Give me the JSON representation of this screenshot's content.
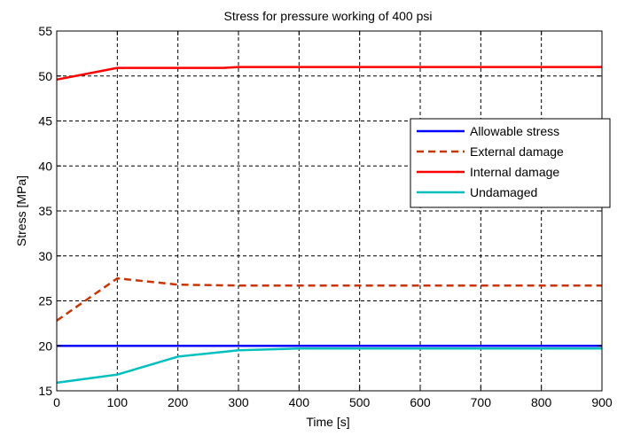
{
  "chart_data": {
    "type": "line",
    "title": "Stress for pressure working of 400 psi",
    "xlabel": "Time [s]",
    "ylabel": "Stress [MPa]",
    "xlim": [
      0,
      900
    ],
    "ylim": [
      15,
      55
    ],
    "xticks": [
      0,
      100,
      200,
      300,
      400,
      500,
      600,
      700,
      800,
      900
    ],
    "yticks": [
      15,
      20,
      25,
      30,
      35,
      40,
      45,
      50,
      55
    ],
    "grid": true,
    "grid_style": "dashed",
    "legend_position": "right",
    "series": [
      {
        "name": "Allowable stress",
        "color": "#0000ff",
        "dash": "solid",
        "x": [
          0,
          900
        ],
        "y": [
          20,
          20
        ]
      },
      {
        "name": "External damage",
        "color": "#cc3300",
        "dash": "dashed",
        "x": [
          0,
          100,
          200,
          300,
          400,
          500,
          600,
          700,
          800,
          900
        ],
        "y": [
          22.8,
          27.5,
          26.8,
          26.7,
          26.7,
          26.7,
          26.7,
          26.7,
          26.7,
          26.7
        ]
      },
      {
        "name": "Internal damage",
        "color": "#ff0000",
        "dash": "solid",
        "x": [
          0,
          100,
          200,
          275,
          300,
          400,
          500,
          600,
          700,
          800,
          900
        ],
        "y": [
          49.6,
          50.9,
          50.9,
          50.9,
          51.0,
          51.0,
          51.0,
          51.0,
          51.0,
          51.0,
          51.0
        ]
      },
      {
        "name": "Undamaged",
        "color": "#00bfbf",
        "dash": "solid",
        "x": [
          0,
          100,
          200,
          300,
          400,
          500,
          600,
          700,
          800,
          900
        ],
        "y": [
          15.9,
          16.8,
          18.8,
          19.5,
          19.7,
          19.7,
          19.7,
          19.7,
          19.7,
          19.7
        ]
      }
    ]
  }
}
